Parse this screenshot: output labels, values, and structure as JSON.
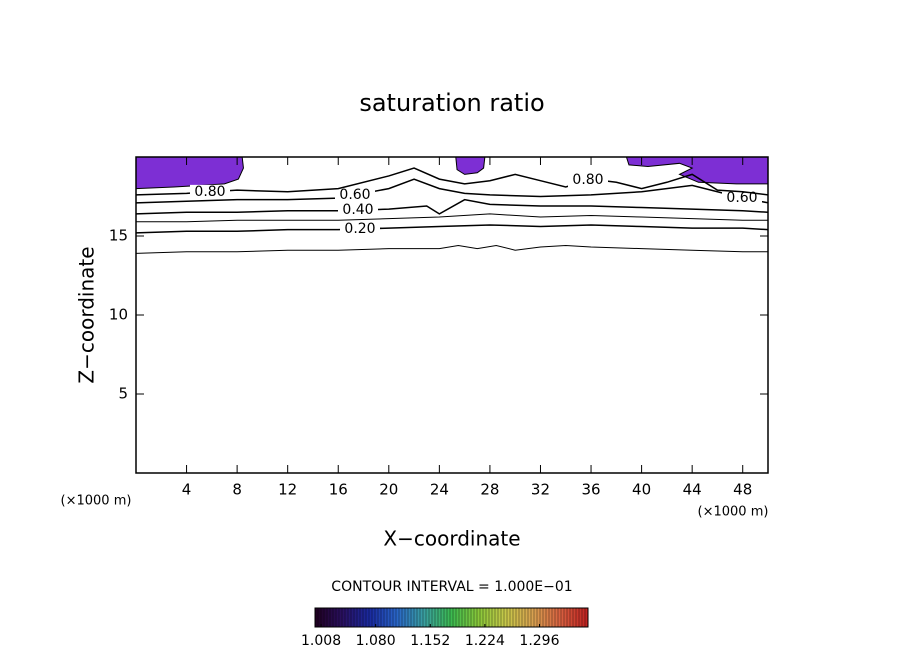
{
  "chart_data": {
    "type": "contour",
    "title": "saturation ratio",
    "x_label": "X−coordinate",
    "y_label": "Z−coordinate",
    "x_unit_left": "(×1000 m)",
    "x_unit_right": "(×1000 m)",
    "xlim": [
      0,
      50
    ],
    "ylim": [
      0,
      20
    ],
    "xticks": [
      4,
      8,
      12,
      16,
      20,
      24,
      28,
      32,
      36,
      40,
      44,
      48
    ],
    "yticks": [
      5,
      10,
      15
    ],
    "contours": [
      {
        "level": 0.1,
        "x": [
          0,
          4,
          8,
          12,
          16,
          20,
          24,
          25.5,
          27,
          28.5,
          30,
          32,
          34,
          36,
          40,
          44,
          48,
          50
        ],
        "y": [
          13.9,
          14.0,
          14.0,
          14.1,
          14.1,
          14.2,
          14.2,
          14.4,
          14.2,
          14.4,
          14.1,
          14.3,
          14.4,
          14.3,
          14.2,
          14.1,
          14.0,
          14.0
        ]
      },
      {
        "level": 0.2,
        "label": "0.20",
        "x": [
          0,
          4,
          8,
          12,
          16,
          20,
          24,
          28,
          32,
          36,
          40,
          44,
          48,
          50
        ],
        "y": [
          15.2,
          15.3,
          15.3,
          15.4,
          15.4,
          15.5,
          15.6,
          15.7,
          15.6,
          15.7,
          15.6,
          15.5,
          15.5,
          15.4
        ]
      },
      {
        "level": 0.3,
        "x": [
          0,
          4,
          8,
          12,
          16,
          20,
          24,
          28,
          32,
          36,
          40,
          44,
          48,
          50
        ],
        "y": [
          15.9,
          15.9,
          16.0,
          16.0,
          16.0,
          16.1,
          16.2,
          16.4,
          16.2,
          16.3,
          16.2,
          16.1,
          16.0,
          16.0
        ]
      },
      {
        "level": 0.4,
        "label": "0.40",
        "x": [
          0,
          4,
          8,
          12,
          16,
          20,
          23,
          24,
          26,
          28,
          32,
          36,
          40,
          44,
          48,
          50
        ],
        "y": [
          16.4,
          16.5,
          16.5,
          16.6,
          16.6,
          16.7,
          16.9,
          16.4,
          17.3,
          17.0,
          16.9,
          16.9,
          16.8,
          16.7,
          16.6,
          16.5
        ]
      },
      {
        "level": 0.6,
        "label": "0.60",
        "x": [
          0,
          4,
          8,
          12,
          16,
          20,
          22,
          24,
          26,
          28,
          32,
          36,
          40,
          44,
          48,
          50
        ],
        "y": [
          17.1,
          17.2,
          17.3,
          17.3,
          17.4,
          18.0,
          18.6,
          18.0,
          17.7,
          17.6,
          17.5,
          17.6,
          17.8,
          18.2,
          17.4,
          17.1
        ]
      },
      {
        "level": 0.8,
        "label": "0.80",
        "x": [
          0,
          4,
          8,
          12,
          16,
          20,
          22,
          24,
          26,
          28,
          30,
          32,
          34,
          36,
          38,
          40,
          42,
          44,
          46,
          48,
          50
        ],
        "y": [
          17.6,
          17.7,
          17.9,
          17.8,
          18.0,
          18.8,
          19.3,
          18.6,
          18.3,
          18.5,
          18.9,
          18.5,
          18.1,
          18.6,
          18.4,
          18.0,
          18.4,
          18.9,
          17.9,
          17.8,
          17.6
        ]
      }
    ],
    "filled_regions": [
      {
        "color": "#7d2fd4",
        "x": [
          0,
          8.4,
          8.5,
          8.1,
          7.0,
          5.0,
          3.0,
          0
        ],
        "y": [
          20,
          20,
          19.3,
          18.6,
          18.3,
          18.2,
          18.1,
          18.0
        ]
      },
      {
        "color": "#7d2fd4",
        "x": [
          25.3,
          27.6,
          27.5,
          27.0,
          26.0,
          25.4
        ],
        "y": [
          20,
          20,
          19.3,
          19.0,
          18.9,
          19.2
        ]
      },
      {
        "color": "#7d2fd4",
        "x": [
          38.8,
          50,
          50,
          47.5,
          44.5,
          43.0,
          44.0,
          43.0,
          40.5,
          39.0
        ],
        "y": [
          20,
          20,
          18.3,
          18.3,
          18.4,
          18.9,
          19.3,
          19.6,
          19.4,
          19.5
        ]
      }
    ],
    "colorbar": {
      "title": "CONTOUR INTERVAL = 1.000E−01",
      "clim": [
        1.0,
        1.36
      ],
      "colors": [
        "#200020",
        "#2a1060",
        "#1a2aa0",
        "#2a66c8",
        "#3aa0a0",
        "#3cba50",
        "#8ac83a",
        "#c8c84a",
        "#d8a050",
        "#d86040",
        "#c02020"
      ],
      "ticks": [
        {
          "value": 1.008,
          "label": "1.008"
        },
        {
          "value": 1.08,
          "label": "1.080"
        },
        {
          "value": 1.152,
          "label": "1.152"
        },
        {
          "value": 1.224,
          "label": "1.224"
        },
        {
          "value": 1.296,
          "label": "1.296"
        }
      ]
    }
  }
}
